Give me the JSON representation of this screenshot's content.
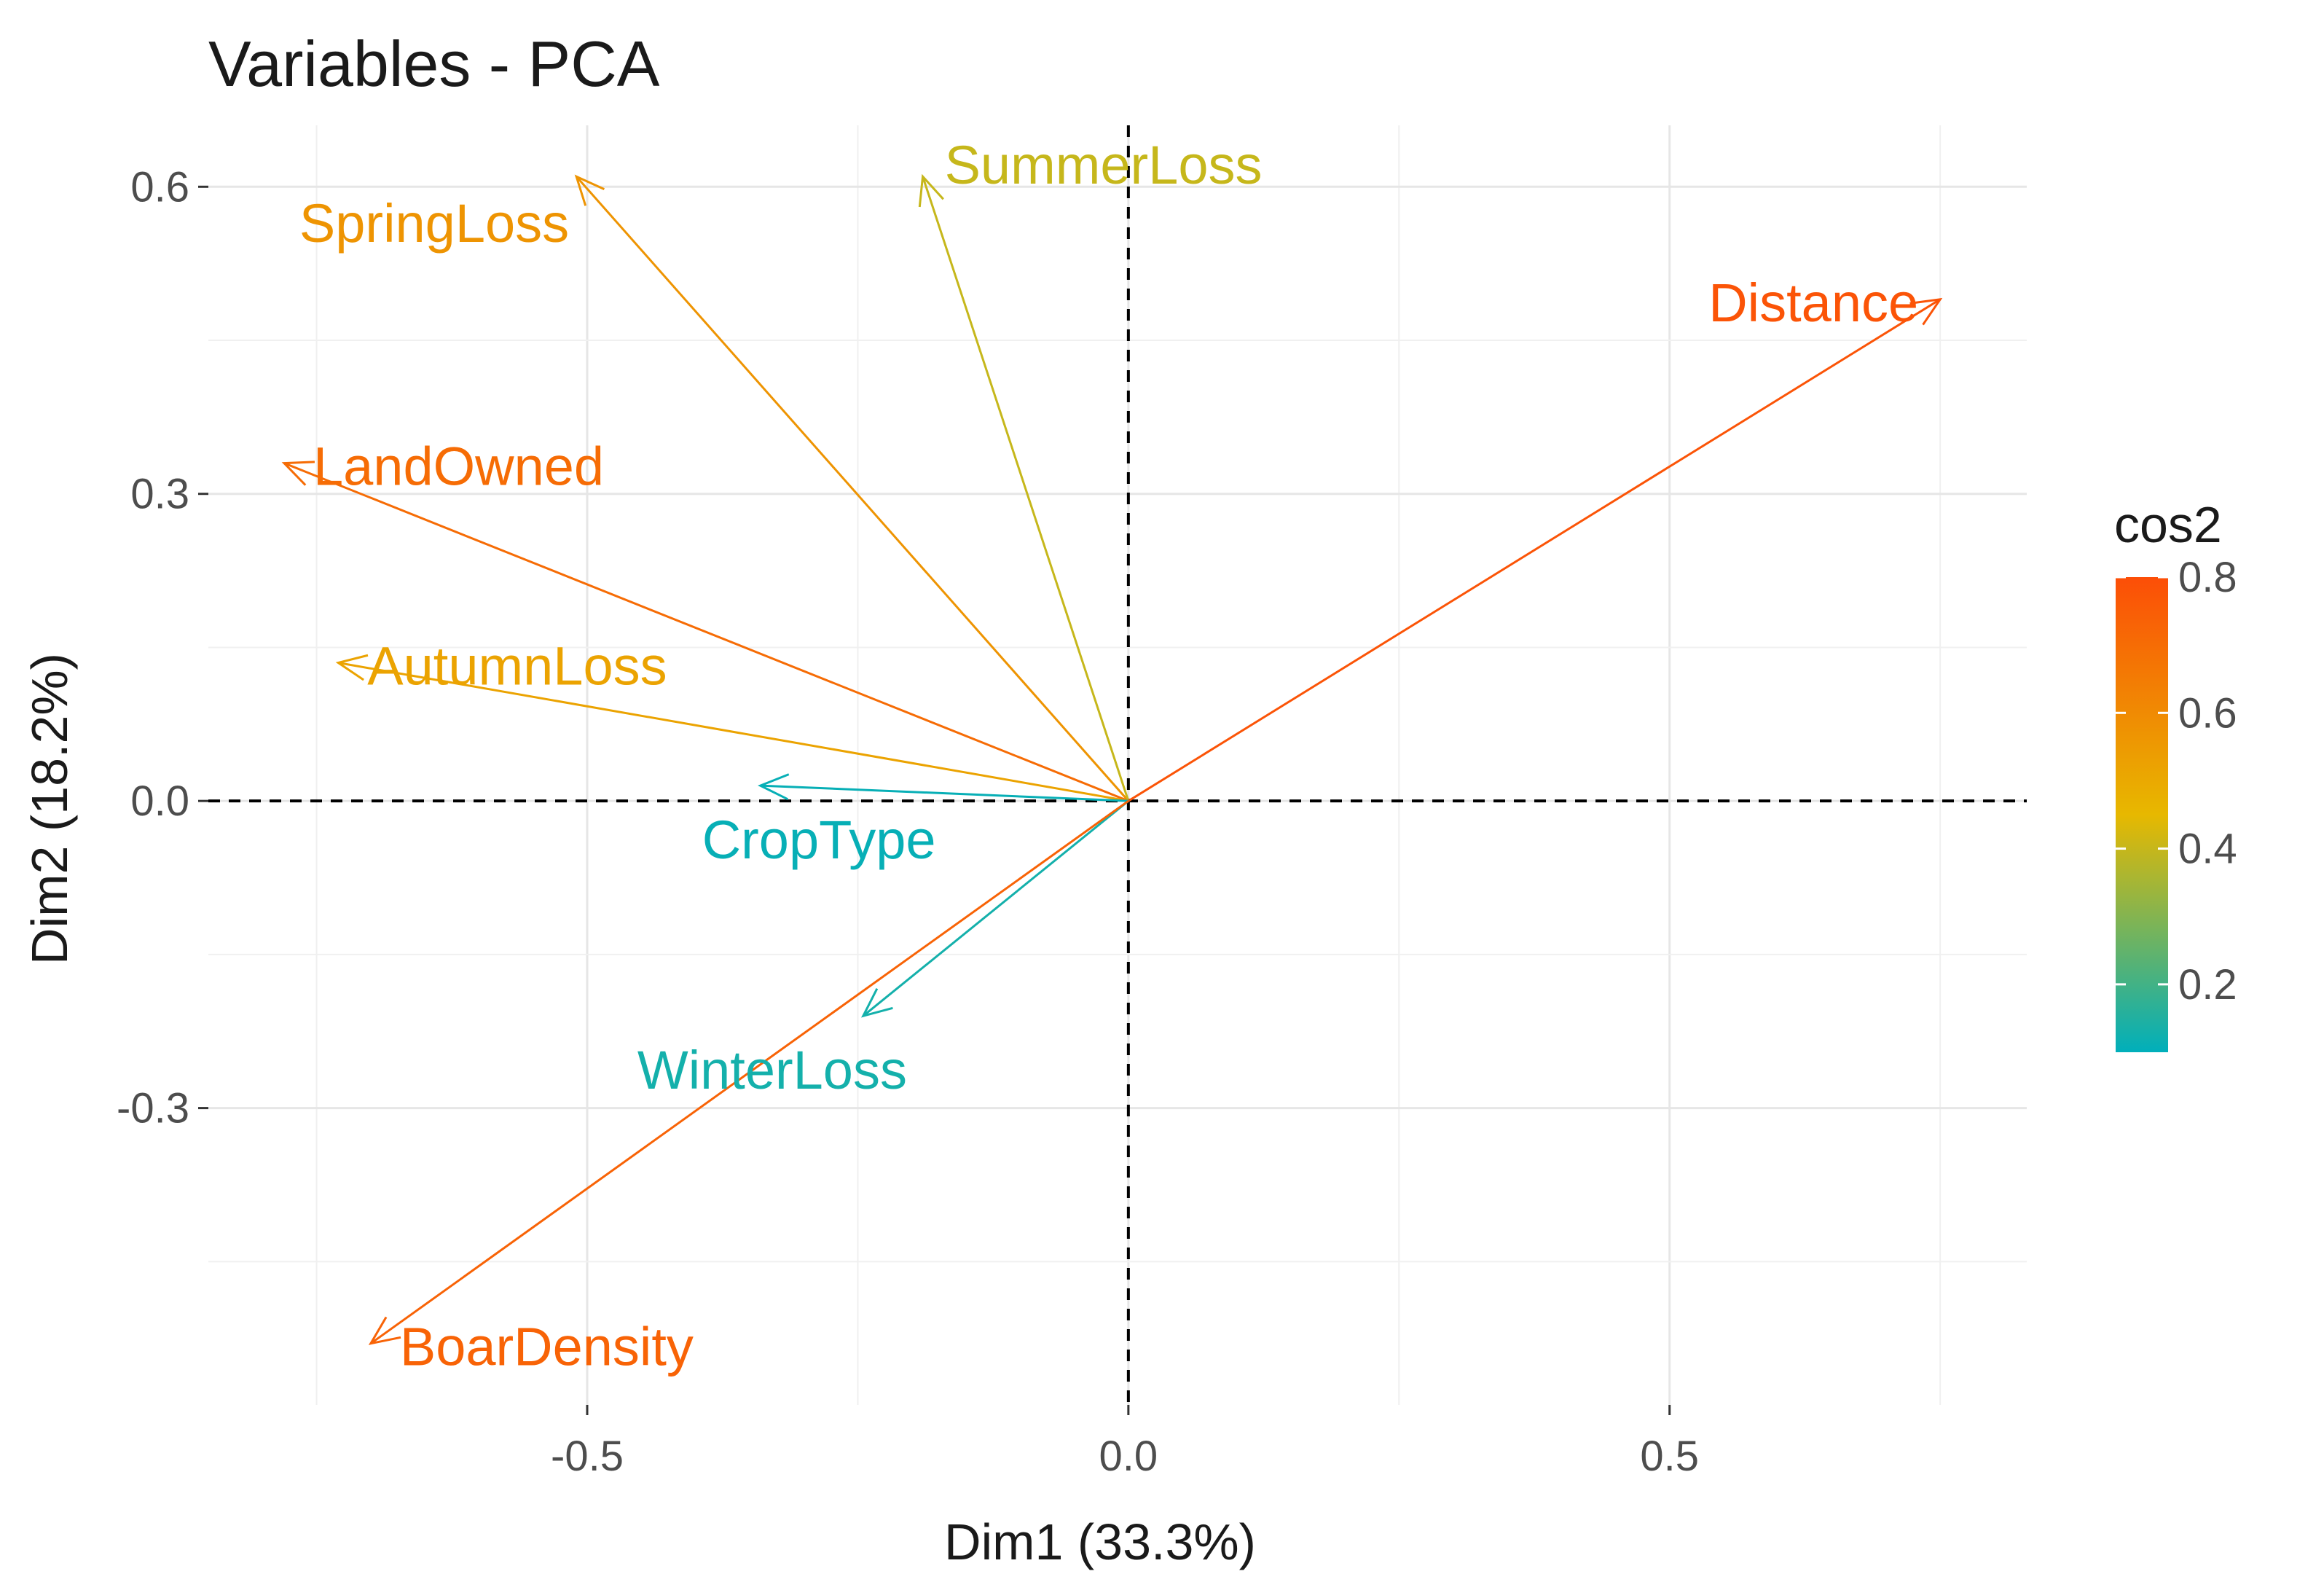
{
  "chart_data": {
    "type": "scatter",
    "subtype": "pca-variable-correlation-plot",
    "title": "Variables - PCA",
    "xlabel": "Dim1 (33.3%)",
    "ylabel": "Dim2 (18.2%)",
    "xlim": [
      -0.85,
      0.83
    ],
    "ylim": [
      -0.59,
      0.66
    ],
    "x_ticks": [
      -0.5,
      0.0,
      0.5
    ],
    "x_tick_labels": [
      "-0.5",
      "0.0",
      "0.5"
    ],
    "y_ticks": [
      -0.3,
      0.0,
      0.3,
      0.6
    ],
    "y_tick_labels": [
      "-0.3",
      "0.0",
      "0.3",
      "0.6"
    ],
    "grid": true,
    "reference_lines": [
      "x = 0 (dashed)",
      "y = 0 (dashed)"
    ],
    "variables": [
      {
        "name": "SpringLoss",
        "x": -0.51,
        "y": 0.61,
        "cos2": 0.57
      },
      {
        "name": "SummerLoss",
        "x": -0.19,
        "y": 0.61,
        "cos2": 0.4
      },
      {
        "name": "Distance",
        "x": 0.75,
        "y": 0.49,
        "cos2": 0.78
      },
      {
        "name": "LandOwned",
        "x": -0.78,
        "y": 0.33,
        "cos2": 0.7
      },
      {
        "name": "AutumnLoss",
        "x": -0.73,
        "y": 0.135,
        "cos2": 0.52
      },
      {
        "name": "CropType",
        "x": -0.34,
        "y": 0.015,
        "cos2": 0.11
      },
      {
        "name": "WinterLoss",
        "x": -0.245,
        "y": -0.21,
        "cos2": 0.13
      },
      {
        "name": "BoarDensity",
        "x": -0.7,
        "y": -0.53,
        "cos2": 0.73
      }
    ],
    "legend": {
      "title": "cos2",
      "placement": "right",
      "ticks": [
        0.2,
        0.4,
        0.6,
        0.8
      ],
      "tick_labels": [
        "0.2",
        "0.4",
        "0.6",
        "0.8"
      ],
      "range": [
        0.1,
        0.8
      ],
      "gradient_colors": [
        "#00AFBB",
        "#E7B800",
        "#FC4E07"
      ]
    }
  }
}
